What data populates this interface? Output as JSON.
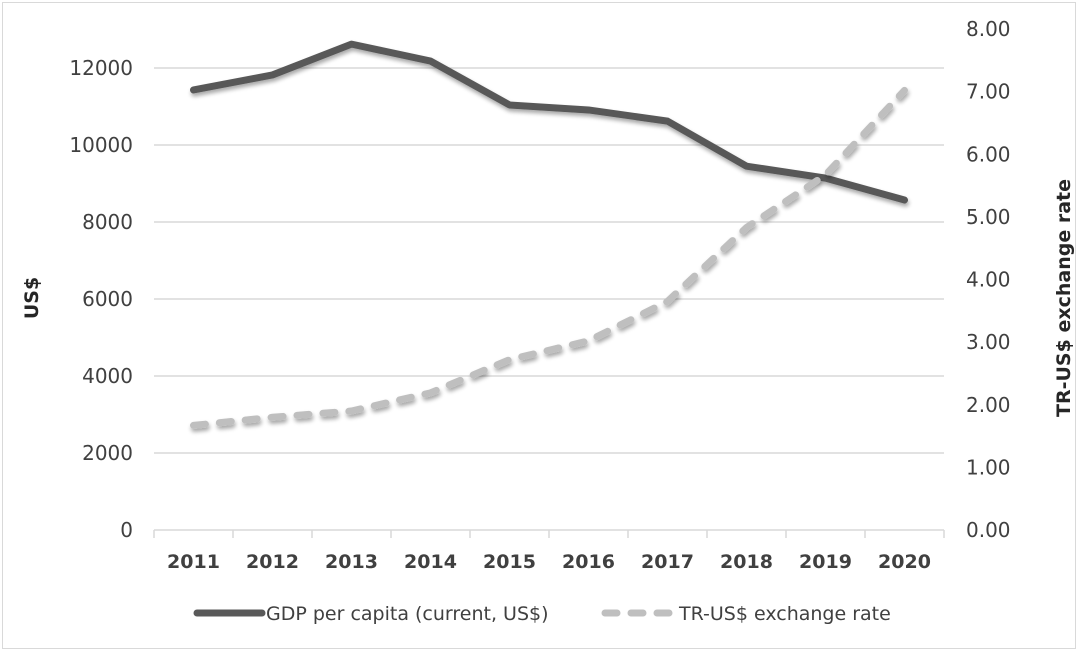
{
  "chart_data": {
    "type": "line",
    "title": "",
    "categories": [
      "2011",
      "2012",
      "2013",
      "2014",
      "2015",
      "2016",
      "2017",
      "2018",
      "2019",
      "2020"
    ],
    "series": [
      {
        "name": "GDP per capita (current, US$)",
        "axis": "left",
        "style": "solid",
        "color": "#595959",
        "values": [
          11430,
          11820,
          12620,
          12180,
          11040,
          10910,
          10620,
          9450,
          9140,
          8570
        ]
      },
      {
        "name": "TR-US$ exchange rate",
        "axis": "right",
        "style": "dashed",
        "color": "#bfbfbf",
        "values": [
          1.67,
          1.8,
          1.9,
          2.19,
          2.72,
          3.02,
          3.65,
          4.83,
          5.67,
          7.02
        ]
      }
    ],
    "ylabel": "US$",
    "y2label": "TR-US$ exchange rate",
    "xlabel": "",
    "ylim": [
      0,
      13000
    ],
    "y2lim": [
      0,
      8
    ],
    "yticks": [
      "0",
      "2000",
      "4000",
      "6000",
      "8000",
      "10000",
      "12000"
    ],
    "ytick_values": [
      0,
      2000,
      4000,
      6000,
      8000,
      10000,
      12000
    ],
    "y2ticks": [
      "0.00",
      "1.00",
      "2.00",
      "3.00",
      "4.00",
      "5.00",
      "6.00",
      "7.00",
      "8.00"
    ],
    "y2tick_values": [
      0,
      1,
      2,
      3,
      4,
      5,
      6,
      7,
      8
    ],
    "grid": true,
    "legend_position": "bottom"
  },
  "colors": {
    "gridline": "#d9d9d9",
    "text": "#404040"
  }
}
